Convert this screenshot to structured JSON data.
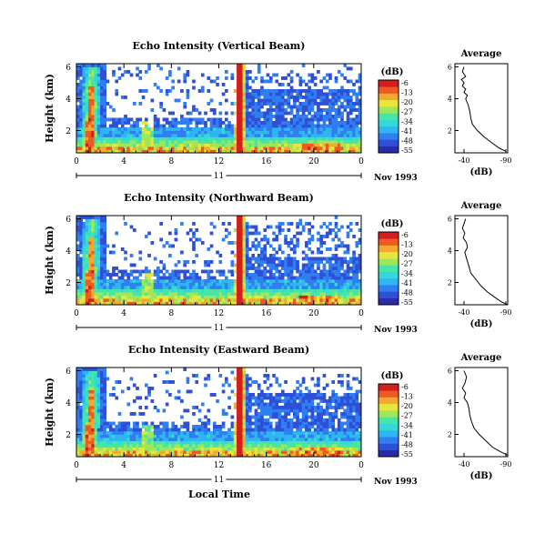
{
  "page": {
    "xlabel": "Local Time"
  },
  "panels": [
    {
      "title": "Echo Intensity (Vertical Beam)",
      "ylabel": "Height (km)",
      "day": "11",
      "date_label": "Nov 1993",
      "colorbar_unit": "(dB)",
      "avg_title": "Average",
      "avg_xlabel": "(dB)"
    },
    {
      "title": "Echo Intensity (Northward Beam)",
      "ylabel": "Height (km)",
      "day": "11",
      "date_label": "Nov 1993",
      "colorbar_unit": "(dB)",
      "avg_title": "Average",
      "avg_xlabel": "(dB)"
    },
    {
      "title": "Echo Intensity (Eastward Beam)",
      "ylabel": "Height (km)",
      "day": "11",
      "date_label": "Nov 1993",
      "colorbar_unit": "(dB)",
      "avg_title": "Average",
      "avg_xlabel": "(dB)"
    }
  ],
  "colors": {
    "scale": [
      "#2b2ba6",
      "#2f4fd6",
      "#2f7ef2",
      "#2fb6f2",
      "#35d8d8",
      "#45e6a8",
      "#9ee65a",
      "#e6e63c",
      "#f2aa2e",
      "#ee5a24",
      "#d21e1e"
    ]
  },
  "chart_data": [
    {
      "type": "heatmap",
      "title": "Echo Intensity (Vertical Beam)",
      "xlabel": "Local Time",
      "ylabel": "Height (km)",
      "x_ticks": [
        "0",
        "4",
        "8",
        "12",
        "16",
        "20",
        "0"
      ],
      "xlim": [
        0,
        24
      ],
      "y_ticks": [
        "2",
        "4",
        "6"
      ],
      "ylim": [
        0.6,
        6.2
      ],
      "colorbar": {
        "label": "(dB)",
        "ticks": [
          "-6",
          "-13",
          "-20",
          "-27",
          "-34",
          "-41",
          "-48",
          "-55"
        ],
        "range": [
          -58,
          -4
        ]
      },
      "average_profile": {
        "title": "Average",
        "xlabel": "(dB)",
        "x_ticks": [
          "-40",
          "-90"
        ],
        "y_ticks": [
          "2",
          "4",
          "6"
        ],
        "points": [
          [
            -40,
            6.0
          ],
          [
            -38,
            5.7
          ],
          [
            -42,
            5.4
          ],
          [
            -37,
            5.2
          ],
          [
            -40,
            5.0
          ],
          [
            -38,
            4.8
          ],
          [
            -42,
            4.6
          ],
          [
            -40,
            4.4
          ],
          [
            -44,
            4.2
          ],
          [
            -42,
            4.0
          ],
          [
            -45,
            3.6
          ],
          [
            -47,
            3.2
          ],
          [
            -48,
            2.8
          ],
          [
            -50,
            2.4
          ],
          [
            -56,
            2.0
          ],
          [
            -64,
            1.6
          ],
          [
            -74,
            1.2
          ],
          [
            -82,
            0.9
          ],
          [
            -90,
            0.7
          ]
        ]
      }
    },
    {
      "type": "heatmap",
      "title": "Echo Intensity (Northward Beam)",
      "xlabel": "Local Time",
      "ylabel": "Height (km)",
      "x_ticks": [
        "0",
        "4",
        "8",
        "12",
        "16",
        "20",
        "0"
      ],
      "xlim": [
        0,
        24
      ],
      "y_ticks": [
        "2",
        "4",
        "6"
      ],
      "ylim": [
        0.6,
        6.2
      ],
      "colorbar": {
        "label": "(dB)",
        "ticks": [
          "-6",
          "-13",
          "-20",
          "-27",
          "-34",
          "-41",
          "-48",
          "-55"
        ],
        "range": [
          -58,
          -4
        ]
      },
      "average_profile": {
        "title": "Average",
        "xlabel": "(dB)",
        "x_ticks": [
          "-40",
          "-90"
        ],
        "y_ticks": [
          "2",
          "4",
          "6"
        ],
        "points": [
          [
            -42,
            6.0
          ],
          [
            -40,
            5.7
          ],
          [
            -38,
            5.4
          ],
          [
            -41,
            5.1
          ],
          [
            -39,
            4.8
          ],
          [
            -43,
            4.5
          ],
          [
            -44,
            4.2
          ],
          [
            -41,
            3.9
          ],
          [
            -43,
            3.5
          ],
          [
            -46,
            3.0
          ],
          [
            -48,
            2.6
          ],
          [
            -54,
            2.2
          ],
          [
            -60,
            1.8
          ],
          [
            -68,
            1.4
          ],
          [
            -76,
            1.1
          ],
          [
            -84,
            0.8
          ],
          [
            -92,
            0.6
          ]
        ]
      }
    },
    {
      "type": "heatmap",
      "title": "Echo Intensity (Eastward Beam)",
      "xlabel": "Local Time",
      "ylabel": "Height (km)",
      "x_ticks": [
        "0",
        "4",
        "8",
        "12",
        "16",
        "20",
        "0"
      ],
      "xlim": [
        0,
        24
      ],
      "y_ticks": [
        "2",
        "4",
        "6"
      ],
      "ylim": [
        0.6,
        6.2
      ],
      "colorbar": {
        "label": "(dB)",
        "ticks": [
          "-6",
          "-13",
          "-20",
          "-27",
          "-34",
          "-41",
          "-48",
          "-55"
        ],
        "range": [
          -58,
          -4
        ]
      },
      "average_profile": {
        "title": "Average",
        "xlabel": "(dB)",
        "x_ticks": [
          "-40",
          "-90"
        ],
        "y_ticks": [
          "2",
          "4",
          "6"
        ],
        "points": [
          [
            -40,
            6.0
          ],
          [
            -43,
            5.6
          ],
          [
            -41,
            5.2
          ],
          [
            -38,
            4.9
          ],
          [
            -42,
            4.6
          ],
          [
            -40,
            4.3
          ],
          [
            -44,
            4.0
          ],
          [
            -46,
            3.6
          ],
          [
            -47,
            3.2
          ],
          [
            -49,
            2.8
          ],
          [
            -52,
            2.4
          ],
          [
            -58,
            2.0
          ],
          [
            -66,
            1.6
          ],
          [
            -74,
            1.2
          ],
          [
            -84,
            0.9
          ],
          [
            -92,
            0.7
          ]
        ]
      }
    }
  ]
}
